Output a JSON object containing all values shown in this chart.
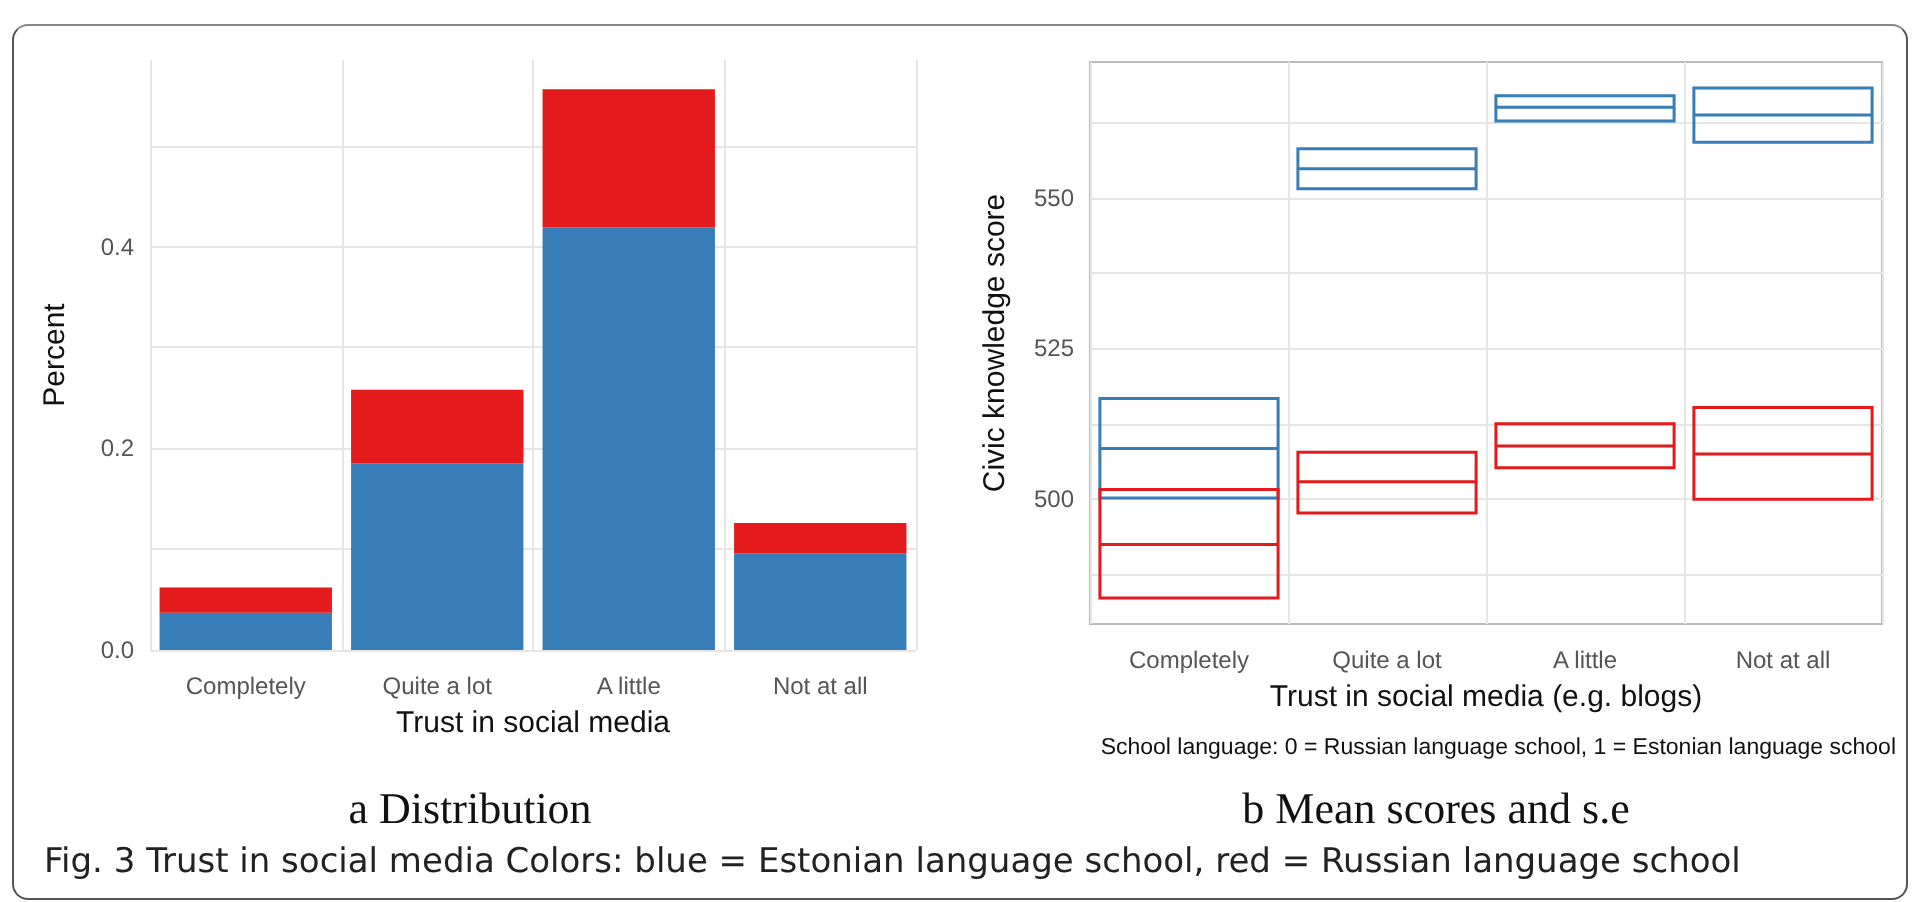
{
  "chart_data": [
    {
      "type": "bar",
      "title": "a Distribution",
      "xlabel": "Trust in social media",
      "ylabel": "Percent",
      "categories": [
        "Completely",
        "Quite a lot",
        "A little",
        "Not at all"
      ],
      "series": [
        {
          "color": "#377eb8",
          "values": [
            0.037,
            0.185,
            0.419,
            0.096
          ]
        },
        {
          "color": "#e41a1c",
          "values": [
            0.025,
            0.073,
            0.137,
            0.03
          ]
        }
      ],
      "stacked": true,
      "ylim": [
        0,
        0.585
      ],
      "yticks": [
        {
          "value": 0,
          "label": "0.0"
        },
        {
          "value": 0.1,
          "label": null
        },
        0.2,
        {
          "value": 0.3,
          "label": null
        },
        0.4,
        {
          "value": 0.5,
          "label": null
        }
      ],
      "grid": true,
      "annotations": [
        "Fig. 3 Trust in social media Colors: blue = Estonian language school, red = Russian language school"
      ]
    },
    {
      "type": "box",
      "title": "b Mean scores and s.e",
      "xlabel": "Trust in social media (e.g. blogs)",
      "ylabel": "Civic knowledge score",
      "categories": [
        "Completely",
        "Quite a lot",
        "A little",
        "Not at all"
      ],
      "series": [
        {
          "color": "#377eb8",
          "boxes": [
            {
              "low": 500.2,
              "q1": 500.2,
              "median": 508.4,
              "q3": 516.7,
              "high": 516.7
            },
            {
              "low": 551.5,
              "q1": 551.5,
              "median": 554.8,
              "q3": 558.1,
              "high": 558.1
            },
            {
              "low": 562.7,
              "q1": 562.7,
              "median": 565.0,
              "q3": 566.9,
              "high": 566.9
            },
            {
              "low": 559.2,
              "q1": 559.2,
              "median": 563.7,
              "q3": 568.2,
              "high": 568.2
            }
          ]
        },
        {
          "color": "#e41a1c",
          "boxes": [
            {
              "low": 483.6,
              "q1": 483.6,
              "median": 492.5,
              "q3": 501.6,
              "high": 501.6
            },
            {
              "low": 497.7,
              "q1": 497.7,
              "median": 502.9,
              "q3": 507.8,
              "high": 507.8
            },
            {
              "low": 505.2,
              "q1": 505.2,
              "median": 508.8,
              "q3": 512.5,
              "high": 512.5
            },
            {
              "low": 500.0,
              "q1": 500.0,
              "median": 507.5,
              "q3": 515.2,
              "high": 515.2
            }
          ]
        }
      ],
      "ylim": [
        479.3,
        572.5
      ],
      "yticks": [
        {
          "value": 487.5,
          "label": null
        },
        500,
        {
          "value": 512.5,
          "label": null
        },
        525,
        {
          "value": 537.5,
          "label": null
        },
        550,
        {
          "value": 562.5,
          "label": null
        }
      ],
      "grid": true,
      "annotations": [
        "School language: 0 = Russian language school, 1 = Estonian language school"
      ]
    }
  ]
}
